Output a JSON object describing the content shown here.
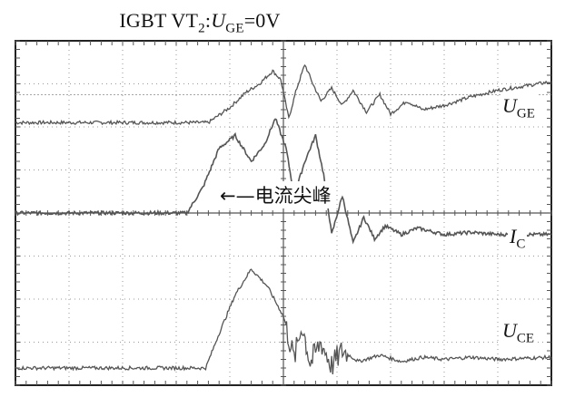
{
  "title": {
    "prefix": "IGBT VT",
    "prefix_sub": "2",
    "sep": ":",
    "var": "U",
    "var_sub": "GE",
    "suffix": "=0V"
  },
  "annotation": "←—电流尖峰",
  "chart_data": {
    "type": "line",
    "title": "IGBT VT2:UGE=0V",
    "xlabel": "",
    "ylabel": "",
    "grid": true,
    "divisions": {
      "x": 10,
      "y": 8
    },
    "xlim": [
      0,
      10
    ],
    "ylim": [
      0,
      8
    ],
    "series": [
      {
        "name": "UGE",
        "name_main": "U",
        "name_sub": "GE",
        "points": [
          [
            0,
            6.1
          ],
          [
            3.6,
            6.1
          ],
          [
            4.0,
            6.45
          ],
          [
            4.3,
            6.8
          ],
          [
            4.55,
            7.0
          ],
          [
            4.8,
            7.3
          ],
          [
            4.95,
            7.1
          ],
          [
            5.1,
            6.2
          ],
          [
            5.25,
            6.9
          ],
          [
            5.4,
            7.45
          ],
          [
            5.55,
            7.0
          ],
          [
            5.7,
            6.6
          ],
          [
            5.9,
            6.9
          ],
          [
            6.1,
            6.5
          ],
          [
            6.3,
            6.85
          ],
          [
            6.55,
            6.35
          ],
          [
            6.8,
            6.75
          ],
          [
            7.0,
            6.3
          ],
          [
            7.3,
            6.6
          ],
          [
            7.6,
            6.4
          ],
          [
            8.0,
            6.5
          ],
          [
            8.5,
            6.7
          ],
          [
            9.0,
            6.85
          ],
          [
            9.5,
            6.95
          ],
          [
            10.0,
            7.05
          ]
        ]
      },
      {
        "name": "IC",
        "name_main": "I",
        "name_sub": "C",
        "points": [
          [
            0,
            4.0
          ],
          [
            3.2,
            4.0
          ],
          [
            3.5,
            4.6
          ],
          [
            3.8,
            5.5
          ],
          [
            4.1,
            5.8
          ],
          [
            4.4,
            5.2
          ],
          [
            4.65,
            5.6
          ],
          [
            4.85,
            6.2
          ],
          [
            5.05,
            5.5
          ],
          [
            5.2,
            4.4
          ],
          [
            5.4,
            5.2
          ],
          [
            5.6,
            5.8
          ],
          [
            5.75,
            4.9
          ],
          [
            5.9,
            3.5
          ],
          [
            6.1,
            4.4
          ],
          [
            6.3,
            3.3
          ],
          [
            6.5,
            3.9
          ],
          [
            6.7,
            3.4
          ],
          [
            6.9,
            3.7
          ],
          [
            7.2,
            3.5
          ],
          [
            7.5,
            3.65
          ],
          [
            8.0,
            3.5
          ],
          [
            8.5,
            3.55
          ],
          [
            9.0,
            3.5
          ],
          [
            10.0,
            3.5
          ]
        ]
      },
      {
        "name": "UCE",
        "name_main": "U",
        "name_sub": "CE",
        "points": [
          [
            0,
            0.4
          ],
          [
            3.55,
            0.4
          ],
          [
            3.8,
            1.2
          ],
          [
            4.1,
            2.1
          ],
          [
            4.4,
            2.7
          ],
          [
            4.7,
            2.3
          ],
          [
            5.0,
            1.6
          ],
          [
            5.2,
            0.6
          ],
          [
            5.35,
            1.4
          ],
          [
            5.5,
            0.5
          ],
          [
            5.7,
            1.0
          ],
          [
            5.9,
            0.45
          ],
          [
            6.1,
            0.8
          ],
          [
            6.4,
            0.55
          ],
          [
            6.8,
            0.7
          ],
          [
            7.2,
            0.55
          ],
          [
            7.6,
            0.65
          ],
          [
            8.0,
            0.6
          ],
          [
            8.5,
            0.65
          ],
          [
            9.0,
            0.6
          ],
          [
            10.0,
            0.65
          ]
        ]
      }
    ]
  },
  "colors": {
    "trace": "#555555",
    "grid": "#999999",
    "frame": "#222222"
  }
}
